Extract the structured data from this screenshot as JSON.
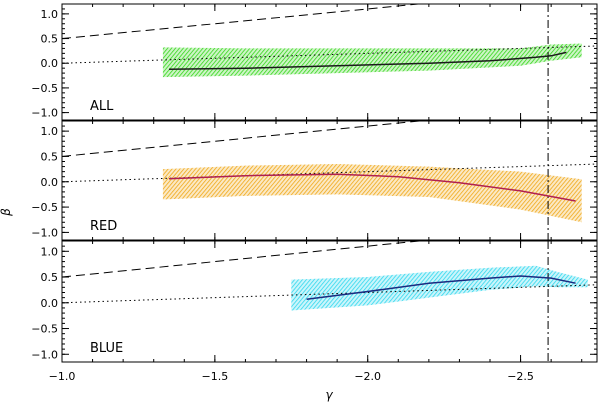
{
  "chart_data": {
    "type": "line",
    "xlabel": "γ",
    "ylabel": "β",
    "xlim": [
      -1.0,
      -2.75
    ],
    "x_reversed": true,
    "ylim": [
      -1.15,
      1.2
    ],
    "x_ticks": [
      -1.0,
      -1.5,
      -2.0,
      -2.5
    ],
    "x_tick_labels": [
      "−1.0",
      "−1.5",
      "−2.0",
      "−2.5"
    ],
    "y_ticks": [
      -1.0,
      -0.5,
      0.0,
      0.5,
      1.0
    ],
    "y_tick_labels": [
      "−1.0",
      "−0.5",
      "0.0",
      "0.5",
      "1.0"
    ],
    "vertical_line": {
      "x": -2.59,
      "style": "dash-dot"
    },
    "reference_lines": [
      {
        "style": "dashed",
        "x": [
          -1.0,
          -2.75
        ],
        "y": [
          0.5,
          1.55
        ]
      },
      {
        "style": "dotted",
        "x": [
          -1.0,
          -2.75
        ],
        "y": [
          0.0,
          0.35
        ]
      }
    ],
    "panels": [
      {
        "label": "ALL",
        "band_color": "#36d61c",
        "line_color": "#1a1a1a",
        "curve": {
          "x": [
            -1.35,
            -1.6,
            -1.9,
            -2.2,
            -2.4,
            -2.55,
            -2.6,
            -2.65
          ],
          "y": [
            -0.12,
            -0.1,
            -0.05,
            0.0,
            0.05,
            0.12,
            0.15,
            0.22
          ]
        },
        "band_upper": {
          "x": [
            -1.33,
            -1.6,
            -1.9,
            -2.2,
            -2.5,
            -2.6,
            -2.7
          ],
          "y": [
            0.32,
            0.3,
            0.3,
            0.3,
            0.3,
            0.38,
            0.4
          ]
        },
        "band_lower": {
          "x": [
            -1.33,
            -1.6,
            -1.9,
            -2.2,
            -2.5,
            -2.6,
            -2.7
          ],
          "y": [
            -0.28,
            -0.25,
            -0.2,
            -0.15,
            -0.05,
            0.05,
            0.12
          ]
        }
      },
      {
        "label": "RED",
        "band_color": "#f0a818",
        "line_color": "#b02050",
        "curve": {
          "x": [
            -1.35,
            -1.6,
            -1.9,
            -2.1,
            -2.3,
            -2.5,
            -2.68
          ],
          "y": [
            0.06,
            0.12,
            0.15,
            0.1,
            -0.02,
            -0.18,
            -0.38
          ]
        },
        "band_upper": {
          "x": [
            -1.33,
            -1.6,
            -1.9,
            -2.2,
            -2.5,
            -2.7
          ],
          "y": [
            0.25,
            0.32,
            0.35,
            0.3,
            0.2,
            0.05
          ]
        },
        "band_lower": {
          "x": [
            -1.33,
            -1.6,
            -1.9,
            -2.2,
            -2.5,
            -2.7
          ],
          "y": [
            -0.35,
            -0.28,
            -0.25,
            -0.3,
            -0.55,
            -0.8
          ]
        }
      },
      {
        "label": "BLUE",
        "band_color": "#30d8ee",
        "line_color": "#1a2a80",
        "curve": {
          "x": [
            -1.8,
            -2.0,
            -2.2,
            -2.4,
            -2.5,
            -2.6,
            -2.68
          ],
          "y": [
            0.07,
            0.22,
            0.38,
            0.48,
            0.52,
            0.48,
            0.38
          ]
        },
        "band_upper": {
          "x": [
            -1.75,
            -2.0,
            -2.2,
            -2.4,
            -2.55,
            -2.62,
            -2.72
          ],
          "y": [
            0.45,
            0.5,
            0.6,
            0.68,
            0.72,
            0.6,
            0.45
          ]
        },
        "band_lower": {
          "x": [
            -1.75,
            -2.0,
            -2.2,
            -2.4,
            -2.55,
            -2.62,
            -2.72
          ],
          "y": [
            -0.15,
            -0.05,
            0.1,
            0.25,
            0.32,
            0.3,
            0.3
          ]
        }
      }
    ]
  }
}
